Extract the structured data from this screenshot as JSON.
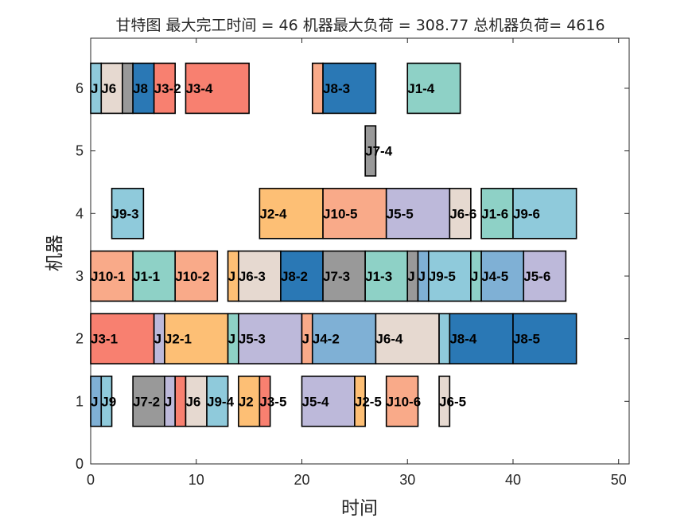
{
  "chart_data": {
    "type": "gantt",
    "title": "甘特图 最大完工时间 = 46 机器最大负荷 = 308.77 总机器负荷= 4616",
    "xlabel": "时间",
    "ylabel": "机器",
    "xlim": [
      0,
      51
    ],
    "ylim": [
      0,
      6.8
    ],
    "xticks": [
      "0",
      "10",
      "20",
      "30",
      "40",
      "50"
    ],
    "yticks": [
      "0",
      "1",
      "2",
      "3",
      "4",
      "5",
      "6"
    ],
    "grid": false,
    "job_colors": {
      "J1": "#8ed1c6",
      "J2": "#fdbf75",
      "J3": "#f88070",
      "J4": "#7fb0d5",
      "J5": "#bdb9da",
      "J6": "#e6d9d0",
      "J7": "#999999",
      "J8": "#2a78b5",
      "J9": "#8fcadb",
      "J10": "#f9aa89"
    },
    "tasks": [
      {
        "machine": 1,
        "start": 0,
        "end": 1,
        "job": "J4",
        "label": "J"
      },
      {
        "machine": 1,
        "start": 1,
        "end": 2,
        "job": "J9",
        "label": "J9"
      },
      {
        "machine": 1,
        "start": 4,
        "end": 7,
        "job": "J7",
        "label": "J7-2"
      },
      {
        "machine": 1,
        "start": 7,
        "end": 8,
        "job": "J5",
        "label": "J"
      },
      {
        "machine": 1,
        "start": 8,
        "end": 9,
        "job": "J3",
        "label": ""
      },
      {
        "machine": 1,
        "start": 9,
        "end": 11,
        "job": "J6",
        "label": "J6"
      },
      {
        "machine": 1,
        "start": 11,
        "end": 13,
        "job": "J9",
        "label": "J9-4"
      },
      {
        "machine": 1,
        "start": 14,
        "end": 16,
        "job": "J2",
        "label": "J2"
      },
      {
        "machine": 1,
        "start": 16,
        "end": 17,
        "job": "J3",
        "label": "J3-5"
      },
      {
        "machine": 1,
        "start": 20,
        "end": 25,
        "job": "J5",
        "label": "J5-4"
      },
      {
        "machine": 1,
        "start": 25,
        "end": 26,
        "job": "J2",
        "label": "J2-5"
      },
      {
        "machine": 1,
        "start": 28,
        "end": 31,
        "job": "J10",
        "label": "J10-6"
      },
      {
        "machine": 1,
        "start": 33,
        "end": 34,
        "job": "J6",
        "label": "J6-5"
      },
      {
        "machine": 2,
        "start": 0,
        "end": 6,
        "job": "J3",
        "label": "J3-1"
      },
      {
        "machine": 2,
        "start": 6,
        "end": 7,
        "job": "J5",
        "label": "J"
      },
      {
        "machine": 2,
        "start": 7,
        "end": 13,
        "job": "J2",
        "label": "J2-1"
      },
      {
        "machine": 2,
        "start": 13,
        "end": 14,
        "job": "J1",
        "label": "J"
      },
      {
        "machine": 2,
        "start": 14,
        "end": 20,
        "job": "J5",
        "label": "J5-3"
      },
      {
        "machine": 2,
        "start": 20,
        "end": 21,
        "job": "J10",
        "label": "J"
      },
      {
        "machine": 2,
        "start": 21,
        "end": 27,
        "job": "J4",
        "label": "J4-2"
      },
      {
        "machine": 2,
        "start": 27,
        "end": 33,
        "job": "J6",
        "label": "J6-4"
      },
      {
        "machine": 2,
        "start": 33,
        "end": 34,
        "job": "J9",
        "label": ""
      },
      {
        "machine": 2,
        "start": 34,
        "end": 40,
        "job": "J8",
        "label": "J8-4"
      },
      {
        "machine": 2,
        "start": 40,
        "end": 46,
        "job": "J8",
        "label": "J8-5"
      },
      {
        "machine": 3,
        "start": 0,
        "end": 4,
        "job": "J10",
        "label": "J10-1"
      },
      {
        "machine": 3,
        "start": 4,
        "end": 8,
        "job": "J1",
        "label": "J1-1"
      },
      {
        "machine": 3,
        "start": 8,
        "end": 12,
        "job": "J10",
        "label": "J10-2"
      },
      {
        "machine": 3,
        "start": 13,
        "end": 14,
        "job": "J2",
        "label": "J"
      },
      {
        "machine": 3,
        "start": 14,
        "end": 18,
        "job": "J6",
        "label": "J6-3"
      },
      {
        "machine": 3,
        "start": 18,
        "end": 22,
        "job": "J8",
        "label": "J8-2"
      },
      {
        "machine": 3,
        "start": 22,
        "end": 26,
        "job": "J7",
        "label": "J7-3"
      },
      {
        "machine": 3,
        "start": 26,
        "end": 30,
        "job": "J1",
        "label": "J1-3"
      },
      {
        "machine": 3,
        "start": 30,
        "end": 31,
        "job": "J7",
        "label": "J"
      },
      {
        "machine": 3,
        "start": 31,
        "end": 32,
        "job": "J4",
        "label": "J"
      },
      {
        "machine": 3,
        "start": 32,
        "end": 36,
        "job": "J9",
        "label": "J9-5"
      },
      {
        "machine": 3,
        "start": 36,
        "end": 37,
        "job": "J1",
        "label": "J"
      },
      {
        "machine": 3,
        "start": 37,
        "end": 41,
        "job": "J4",
        "label": "J4-5"
      },
      {
        "machine": 3,
        "start": 41,
        "end": 45,
        "job": "J5",
        "label": "J5-6"
      },
      {
        "machine": 4,
        "start": 2,
        "end": 5,
        "job": "J9",
        "label": "J9-3"
      },
      {
        "machine": 4,
        "start": 16,
        "end": 22,
        "job": "J2",
        "label": "J2-4"
      },
      {
        "machine": 4,
        "start": 22,
        "end": 28,
        "job": "J10",
        "label": "J10-5"
      },
      {
        "machine": 4,
        "start": 28,
        "end": 34,
        "job": "J5",
        "label": "J5-5"
      },
      {
        "machine": 4,
        "start": 34,
        "end": 36,
        "job": "J6",
        "label": "J6-6"
      },
      {
        "machine": 4,
        "start": 37,
        "end": 40,
        "job": "J1",
        "label": "J1-6"
      },
      {
        "machine": 4,
        "start": 40,
        "end": 46,
        "job": "J9",
        "label": "J9-6"
      },
      {
        "machine": 5,
        "start": 26,
        "end": 27,
        "job": "J7",
        "label": "J7-4"
      },
      {
        "machine": 6,
        "start": 0,
        "end": 1,
        "job": "J9",
        "label": "J"
      },
      {
        "machine": 6,
        "start": 1,
        "end": 3,
        "job": "J6",
        "label": "J6"
      },
      {
        "machine": 6,
        "start": 3,
        "end": 4,
        "job": "J7",
        "label": ""
      },
      {
        "machine": 6,
        "start": 4,
        "end": 6,
        "job": "J8",
        "label": "J8"
      },
      {
        "machine": 6,
        "start": 6,
        "end": 8,
        "job": "J3",
        "label": "J3-2"
      },
      {
        "machine": 6,
        "start": 9,
        "end": 15,
        "job": "J3",
        "label": "J3-4"
      },
      {
        "machine": 6,
        "start": 21,
        "end": 22,
        "job": "J10",
        "label": ""
      },
      {
        "machine": 6,
        "start": 22,
        "end": 27,
        "job": "J8",
        "label": "J8-3"
      },
      {
        "machine": 6,
        "start": 30,
        "end": 35,
        "job": "J1",
        "label": "J1-4"
      }
    ]
  }
}
